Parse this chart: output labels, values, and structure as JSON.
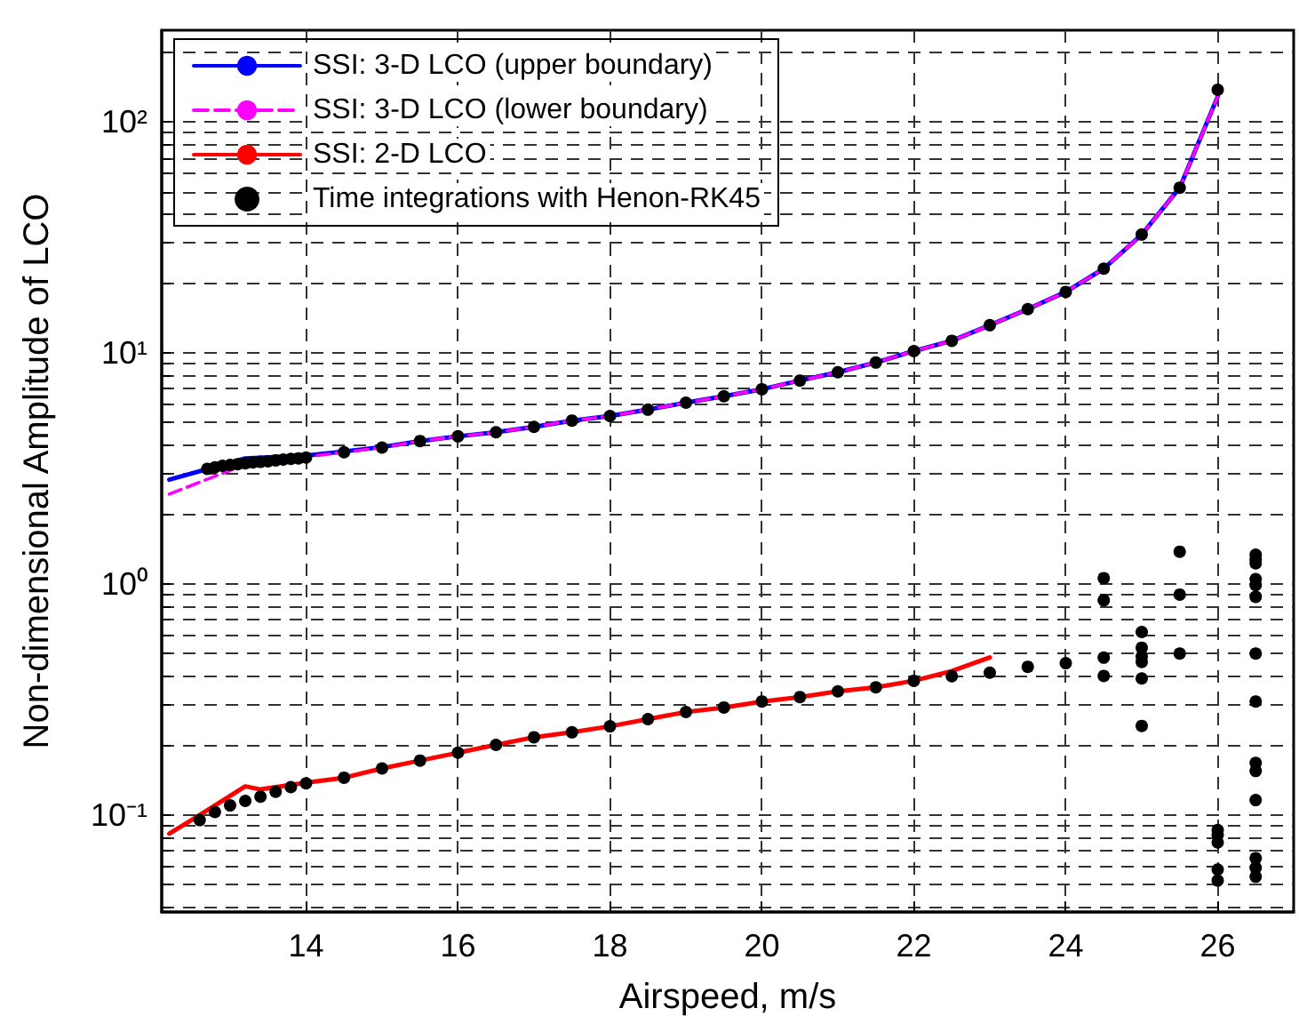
{
  "chart_data": {
    "type": "line",
    "xlabel": "Airspeed, m/s",
    "ylabel": "Non-dimensional Amplitude of LCO",
    "log": "y",
    "grid": true,
    "legend": "top left",
    "xlim": [
      12.1,
      27
    ],
    "xticks": [
      14,
      16,
      18,
      20,
      22,
      24,
      26
    ],
    "ylim": [
      0.038,
      250
    ],
    "yticks": [
      {
        "value": 0.1,
        "label": "10⁻¹"
      },
      {
        "value": 1,
        "label": "10⁰"
      },
      {
        "value": 10,
        "label": "10¹"
      },
      {
        "value": 100,
        "label": "10²"
      }
    ],
    "series": [
      {
        "name": "SSI: 3-D LCO (upper boundary)",
        "color": "#0000ff",
        "line_style": "solid",
        "marker": "none",
        "x": [
          12.2,
          13.2,
          14,
          14.5,
          15,
          15.5,
          16,
          16.5,
          17,
          17.5,
          18,
          18.5,
          19,
          19.5,
          20,
          20.5,
          21,
          21.5,
          22,
          22.5,
          23,
          23.5,
          24,
          24.5,
          25,
          25.5,
          26
        ],
        "values": [
          2.83,
          3.5,
          3.6,
          3.75,
          3.92,
          4.16,
          4.36,
          4.54,
          4.79,
          5.1,
          5.34,
          5.69,
          6.1,
          6.5,
          6.97,
          7.6,
          8.26,
          9.1,
          10.2,
          11.3,
          13.2,
          15.5,
          18.4,
          23.2,
          32.6,
          52,
          129
        ]
      },
      {
        "name": "SSI: 3-D LCO (lower boundary)",
        "color": "#ff00ff",
        "line_style": "dashed",
        "marker": "none",
        "x": [
          12.2,
          13.1,
          14,
          14.5,
          15,
          15.5,
          16,
          16.5,
          17,
          17.5,
          18,
          18.5,
          19,
          19.5,
          20,
          20.5,
          21,
          21.5,
          22,
          22.5,
          23,
          23.5,
          24,
          24.5,
          25,
          25.5,
          26
        ],
        "values": [
          2.45,
          3.2,
          3.55,
          3.72,
          3.9,
          4.16,
          4.36,
          4.54,
          4.79,
          5.1,
          5.34,
          5.69,
          6.1,
          6.5,
          6.97,
          7.6,
          8.26,
          9.1,
          10.2,
          11.3,
          13.2,
          15.5,
          18.4,
          23.2,
          32.6,
          52,
          129
        ]
      },
      {
        "name": "SSI: 2-D LCO",
        "color": "#ff0000",
        "line_style": "solid",
        "marker": "none",
        "x": [
          12.2,
          12.6,
          13.2,
          13.4,
          14,
          14.5,
          15,
          15.5,
          16,
          16.5,
          17,
          17.5,
          18,
          18.5,
          19,
          19.5,
          20,
          20.5,
          21,
          21.5,
          22,
          22.5,
          23
        ],
        "values": [
          0.083,
          0.1,
          0.133,
          0.129,
          0.138,
          0.145,
          0.159,
          0.172,
          0.186,
          0.201,
          0.217,
          0.228,
          0.242,
          0.26,
          0.279,
          0.292,
          0.31,
          0.324,
          0.343,
          0.357,
          0.381,
          0.42,
          0.481
        ]
      },
      {
        "name": "Time integrations with Henon-RK45",
        "type": "scatter",
        "color": "#000000",
        "marker": "circle",
        "x": [
          12.7,
          12.8,
          12.9,
          13.0,
          13.1,
          13.2,
          13.3,
          13.4,
          13.5,
          13.6,
          13.7,
          13.8,
          13.9,
          14,
          14.5,
          15,
          15.5,
          16,
          16.5,
          17,
          17.5,
          18,
          18.5,
          19,
          19.5,
          20,
          20.5,
          21,
          21.5,
          22,
          22.5,
          23,
          23.5,
          24,
          24.5,
          25,
          25.5,
          26,
          12.6,
          12.8,
          13,
          13.2,
          13.4,
          13.6,
          13.8,
          14,
          14.5,
          15,
          15.5,
          16,
          16.5,
          17,
          17.5,
          18,
          18.5,
          19,
          19.5,
          20,
          20.5,
          21,
          21.5,
          22,
          22.5,
          23,
          23.5,
          24,
          24.5,
          24.5,
          24.5,
          24.5,
          25,
          25,
          25,
          25,
          25,
          25,
          25.5,
          25.5,
          25.5,
          26,
          26,
          26,
          26,
          26,
          26.5,
          26.5,
          26.5,
          26.5,
          26.5,
          26.5,
          26.5,
          26.5,
          26.5,
          26.5,
          26.5,
          26.5,
          26.5,
          26.5
        ],
        "values": [
          3.15,
          3.2,
          3.25,
          3.28,
          3.3,
          3.33,
          3.36,
          3.38,
          3.4,
          3.43,
          3.46,
          3.48,
          3.5,
          3.53,
          3.72,
          3.9,
          4.16,
          4.36,
          4.54,
          4.79,
          5.1,
          5.34,
          5.69,
          6.1,
          6.5,
          6.97,
          7.6,
          8.26,
          9.1,
          10.2,
          11.3,
          13.2,
          15.5,
          18.4,
          23.2,
          32.6,
          52,
          138,
          0.095,
          0.103,
          0.11,
          0.115,
          0.12,
          0.126,
          0.132,
          0.137,
          0.145,
          0.159,
          0.172,
          0.186,
          0.201,
          0.217,
          0.228,
          0.242,
          0.26,
          0.279,
          0.292,
          0.31,
          0.324,
          0.343,
          0.357,
          0.381,
          0.399,
          0.413,
          0.438,
          0.454,
          1.06,
          0.85,
          0.48,
          0.4,
          0.62,
          0.53,
          0.485,
          0.46,
          0.39,
          0.243,
          1.38,
          0.9,
          0.5,
          0.086,
          0.082,
          0.076,
          0.058,
          0.052,
          1.34,
          1.28,
          1.23,
          1.05,
          0.99,
          0.88,
          0.5,
          0.31,
          0.168,
          0.155,
          0.116,
          0.065,
          0.059,
          0.054
        ]
      }
    ]
  }
}
